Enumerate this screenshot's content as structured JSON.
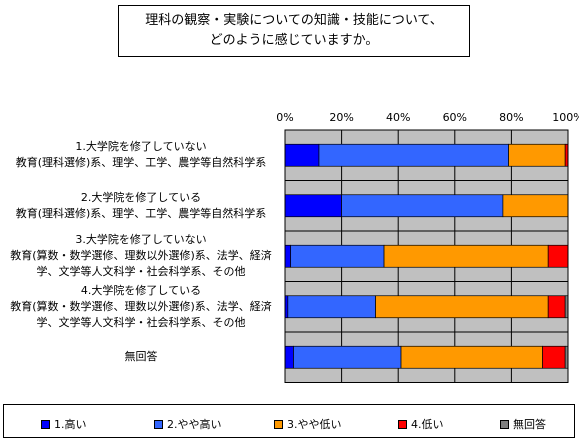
{
  "chart_data": {
    "type": "bar",
    "orientation": "horizontal",
    "stacked": true,
    "percent": true,
    "title": [
      "理科の観察・実験についての知識・技能について、",
      "どのように感じていますか。"
    ],
    "x_ticks": [
      "0%",
      "20%",
      "40%",
      "60%",
      "80%",
      "100%"
    ],
    "xlim": [
      0,
      100
    ],
    "grid": true,
    "legend_position": "bottom",
    "categories": [
      [
        "1.大学院を修了していない",
        "教育(理科選修)系、理学、工学、農学等自然科学系"
      ],
      [
        "2.大学院を修了している",
        "教育(理科選修)系、理学、工学、農学等自然科学系"
      ],
      [
        "3.大学院を修了していない",
        "教育(算数・数学選修、理数以外選修)系、法学、経済",
        "学、文学等人文科学・社会科学系、その他"
      ],
      [
        "4.大学院を修了している",
        "教育(算数・数学選修、理数以外選修)系、法学、経済",
        "学、文学等人文科学・社会科学系、その他"
      ],
      [
        "無回答"
      ]
    ],
    "series": [
      {
        "name": "1.高い",
        "color": "#0000ff",
        "values": [
          12,
          20,
          2,
          1,
          3
        ]
      },
      {
        "name": "2.やや高い",
        "color": "#3366ff",
        "values": [
          67,
          57,
          33,
          31,
          38
        ]
      },
      {
        "name": "3.やや低い",
        "color": "#ff9900",
        "values": [
          20,
          23,
          58,
          61,
          50
        ]
      },
      {
        "name": "4.低い",
        "color": "#ff0000",
        "values": [
          1,
          0,
          7,
          6,
          8
        ]
      },
      {
        "name": "無回答",
        "color": "#808080",
        "values": [
          0,
          0,
          0,
          1,
          1
        ]
      }
    ]
  }
}
